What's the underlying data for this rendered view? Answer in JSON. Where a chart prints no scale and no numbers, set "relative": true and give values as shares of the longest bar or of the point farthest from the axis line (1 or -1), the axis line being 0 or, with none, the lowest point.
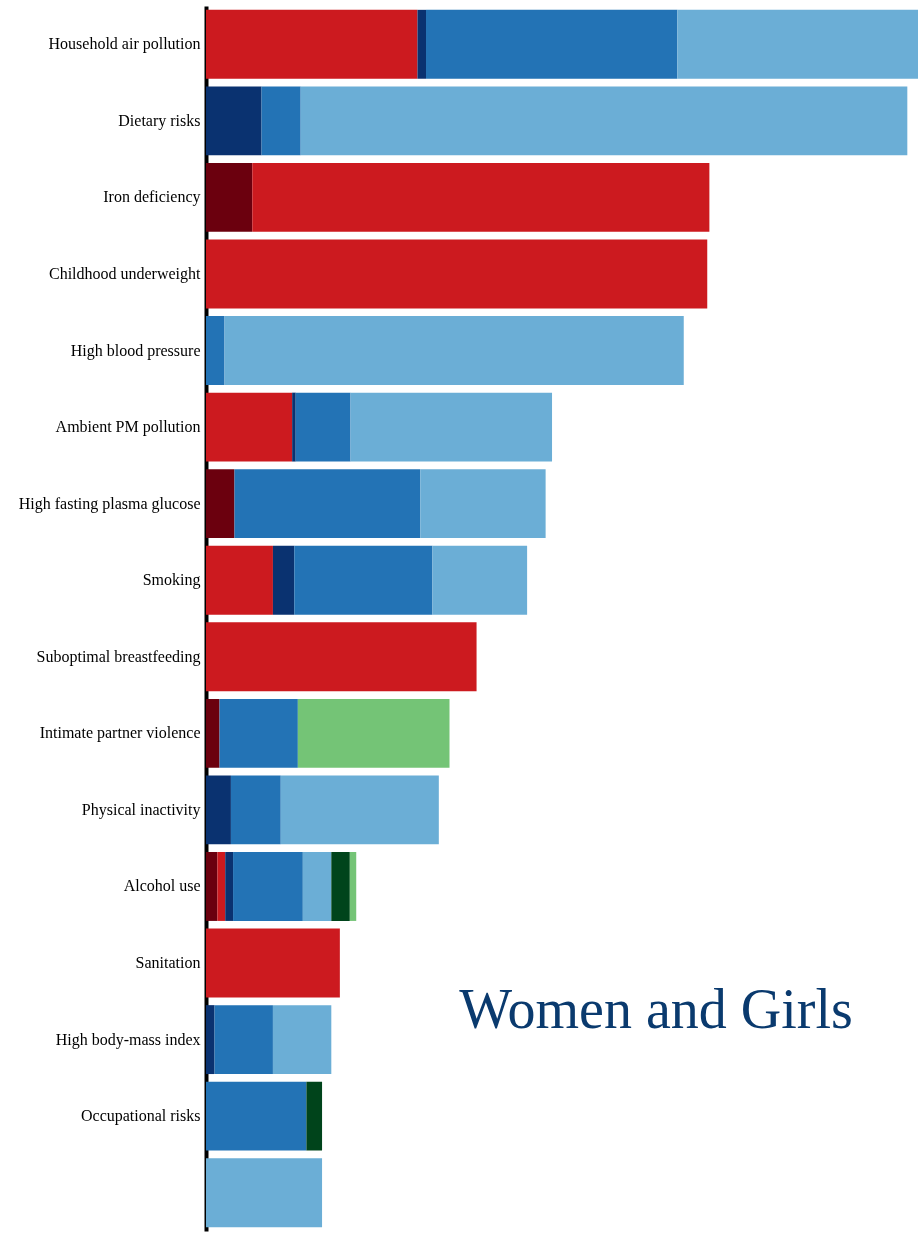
{
  "chart_data": {
    "type": "bar",
    "orientation": "horizontal",
    "stacked": true,
    "relative": true,
    "categories": [
      "Household air pollution",
      "Dietary risks",
      "Iron deficiency",
      "Childhood underweight",
      "High blood pressure",
      "Ambient PM pollution",
      "High fasting plasma glucose",
      "Smoking",
      "Suboptimal breastfeeding",
      "Intimate partner violence",
      "Physical inactivity",
      "Alcohol use",
      "Sanitation",
      "High body-mass index",
      "Occupational risks",
      null
    ],
    "series": [
      {
        "color": "#6b000e",
        "values": [
          null,
          null,
          0.065,
          null,
          null,
          null,
          0.04,
          null,
          null,
          0.019,
          null,
          0.016,
          null,
          null,
          null,
          null
        ]
      },
      {
        "color": "#cc1a1f",
        "values": [
          0.297,
          null,
          0.642,
          0.704,
          null,
          0.121,
          null,
          0.094,
          0.38,
          null,
          null,
          0.011,
          0.188,
          null,
          null,
          null
        ]
      },
      {
        "color": "#0a3270",
        "values": [
          0.012,
          0.078,
          null,
          null,
          null,
          0.005,
          null,
          0.03,
          null,
          null,
          0.035,
          0.011,
          null,
          0.012,
          null,
          null
        ]
      },
      {
        "color": "#2373b5",
        "values": [
          0.353,
          0.055,
          null,
          null,
          0.026,
          0.077,
          0.261,
          0.194,
          null,
          0.11,
          0.07,
          0.098,
          null,
          0.082,
          0.141,
          null
        ]
      },
      {
        "color": "#6baed6",
        "values": [
          0.338,
          0.852,
          null,
          null,
          0.645,
          0.283,
          0.176,
          0.133,
          null,
          null,
          0.222,
          0.04,
          null,
          0.082,
          null,
          0.163
        ]
      },
      {
        "color": "#00441b",
        "values": [
          null,
          null,
          null,
          null,
          null,
          null,
          null,
          null,
          null,
          null,
          null,
          0.026,
          null,
          null,
          0.022,
          null
        ]
      },
      {
        "color": "#74c476",
        "values": [
          null,
          null,
          null,
          null,
          null,
          null,
          null,
          null,
          null,
          0.213,
          null,
          0.009,
          null,
          null,
          null,
          null
        ]
      }
    ],
    "annotations": [
      "Women and Girls"
    ]
  }
}
